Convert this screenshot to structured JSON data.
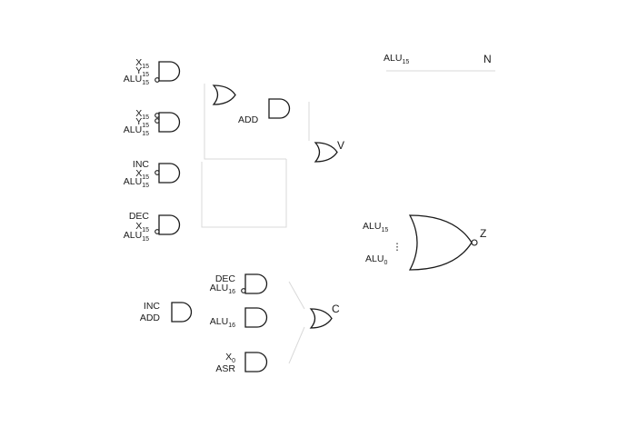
{
  "and_gates": [
    {
      "id": "g1",
      "inputs": [
        {
          "base": "X",
          "sub": "15",
          "inv": false
        },
        {
          "base": "Y",
          "sub": "15",
          "inv": false
        },
        {
          "base": "ALU",
          "sub": "15",
          "inv": true
        }
      ]
    },
    {
      "id": "g2",
      "inputs": [
        {
          "base": "X",
          "sub": "15",
          "inv": true
        },
        {
          "base": "Y",
          "sub": "15",
          "inv": true
        },
        {
          "base": "ALU",
          "sub": "15",
          "inv": false
        }
      ]
    },
    {
      "id": "g3",
      "inputs": [
        {
          "base": "INC",
          "sub": "",
          "inv": false
        },
        {
          "base": "X",
          "sub": "15",
          "inv": true
        },
        {
          "base": "ALU",
          "sub": "15",
          "inv": false
        }
      ]
    },
    {
      "id": "g4",
      "inputs": [
        {
          "base": "DEC",
          "sub": "",
          "inv": false
        },
        {
          "base": "X",
          "sub": "15",
          "inv": false
        },
        {
          "base": "ALU",
          "sub": "15",
          "inv": true
        }
      ]
    },
    {
      "id": "g5",
      "inputs": [
        {
          "base": "DEC",
          "sub": "",
          "inv": false
        },
        {
          "base": "ALU",
          "sub": "16",
          "inv": true
        }
      ]
    },
    {
      "id": "g6",
      "inputs": [
        {
          "base": "ALU",
          "sub": "16",
          "inv": false
        }
      ]
    },
    {
      "id": "g7",
      "inputs": [
        {
          "base": "X",
          "sub": "0",
          "inv": false
        },
        {
          "base": "ASR",
          "sub": "",
          "inv": false
        }
      ]
    }
  ],
  "add_gate_label": "ADD",
  "v_output": "V",
  "c_output": "C",
  "z_output": "Z",
  "inc_add_gate": {
    "inputs": [
      "INC",
      "ADD"
    ]
  },
  "n_flag": {
    "input_base": "ALU",
    "input_sub": "15",
    "output": "N"
  },
  "z_nor": {
    "top_base": "ALU",
    "top_sub": "15",
    "bottom_base": "ALU",
    "bottom_sub": "0",
    "dots": "⋮"
  }
}
